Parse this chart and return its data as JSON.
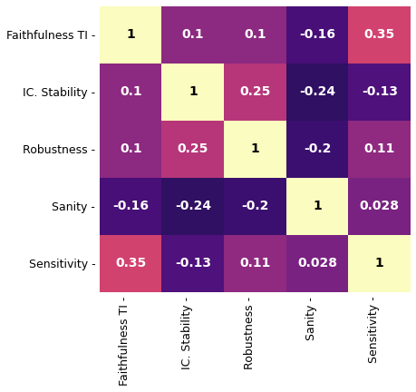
{
  "labels": [
    "Faithfulness TI",
    "IC. Stability",
    "Robustness",
    "Sanity",
    "Sensitivity"
  ],
  "matrix": [
    [
      1,
      0.1,
      0.1,
      -0.16,
      0.35
    ],
    [
      0.1,
      1,
      0.25,
      -0.24,
      -0.13
    ],
    [
      0.1,
      0.25,
      1,
      -0.2,
      0.11
    ],
    [
      -0.16,
      -0.24,
      -0.2,
      1,
      0.028
    ],
    [
      0.35,
      -0.13,
      0.11,
      0.028,
      1
    ]
  ],
  "text_values": [
    [
      "1",
      "0.1",
      "0.1",
      "-0.16",
      "0.35"
    ],
    [
      "0.1",
      "1",
      "0.25",
      "-0.24",
      "-0.13"
    ],
    [
      "0.1",
      "0.25",
      "1",
      "-0.2",
      "0.11"
    ],
    [
      "-0.16",
      "-0.24",
      "-0.2",
      "1",
      "0.028"
    ],
    [
      "0.35",
      "-0.13",
      "0.11",
      "0.028",
      "1"
    ]
  ],
  "cmap": "magma",
  "vmin": -0.5,
  "vmax": 1.0,
  "figsize": [
    4.6,
    4.32
  ],
  "dpi": 100,
  "font_size": 10,
  "tick_font_size": 9,
  "ylabel_fontsize": 9,
  "xlabel_fontsize": 9
}
